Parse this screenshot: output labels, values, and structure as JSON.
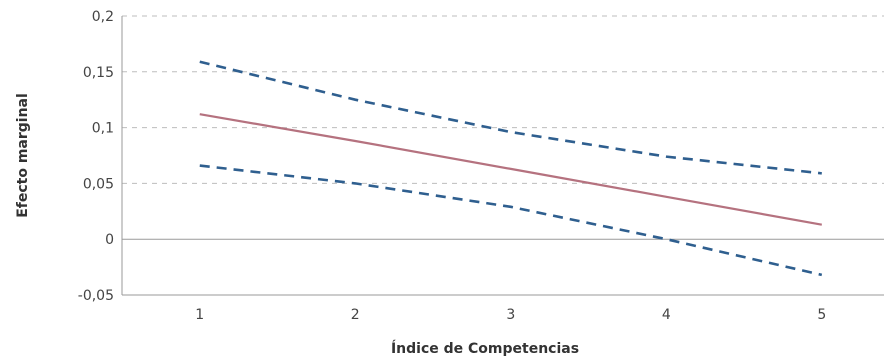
{
  "chart_data": {
    "type": "line",
    "title": "",
    "xlabel": "Índice de Competencias",
    "ylabel": "Efecto marginal",
    "x": [
      1,
      2,
      3,
      4,
      5
    ],
    "x_tick_labels": [
      "1",
      "2",
      "3",
      "4",
      "5"
    ],
    "xlim": [
      0.5,
      5.4
    ],
    "ylim": [
      -0.05,
      0.2
    ],
    "y_ticks": [
      -0.05,
      0,
      0.05,
      0.1,
      0.15,
      0.2
    ],
    "y_tick_labels": [
      "-0,05",
      "0",
      "0,05",
      "0,1",
      "0,15",
      "0,2"
    ],
    "grid": true,
    "legend": "none",
    "series": [
      {
        "role": "upper",
        "style": "dashed",
        "color": "#2f5f8f",
        "values": [
          0.159,
          0.125,
          0.096,
          0.074,
          0.059
        ]
      },
      {
        "role": "estimate",
        "style": "solid",
        "color": "#b5727f",
        "values": [
          0.112,
          0.088,
          0.063,
          0.038,
          0.013
        ]
      },
      {
        "role": "lower",
        "style": "dashed",
        "color": "#2f5f8f",
        "values": [
          0.066,
          0.05,
          0.029,
          0.0,
          -0.032
        ]
      }
    ]
  }
}
